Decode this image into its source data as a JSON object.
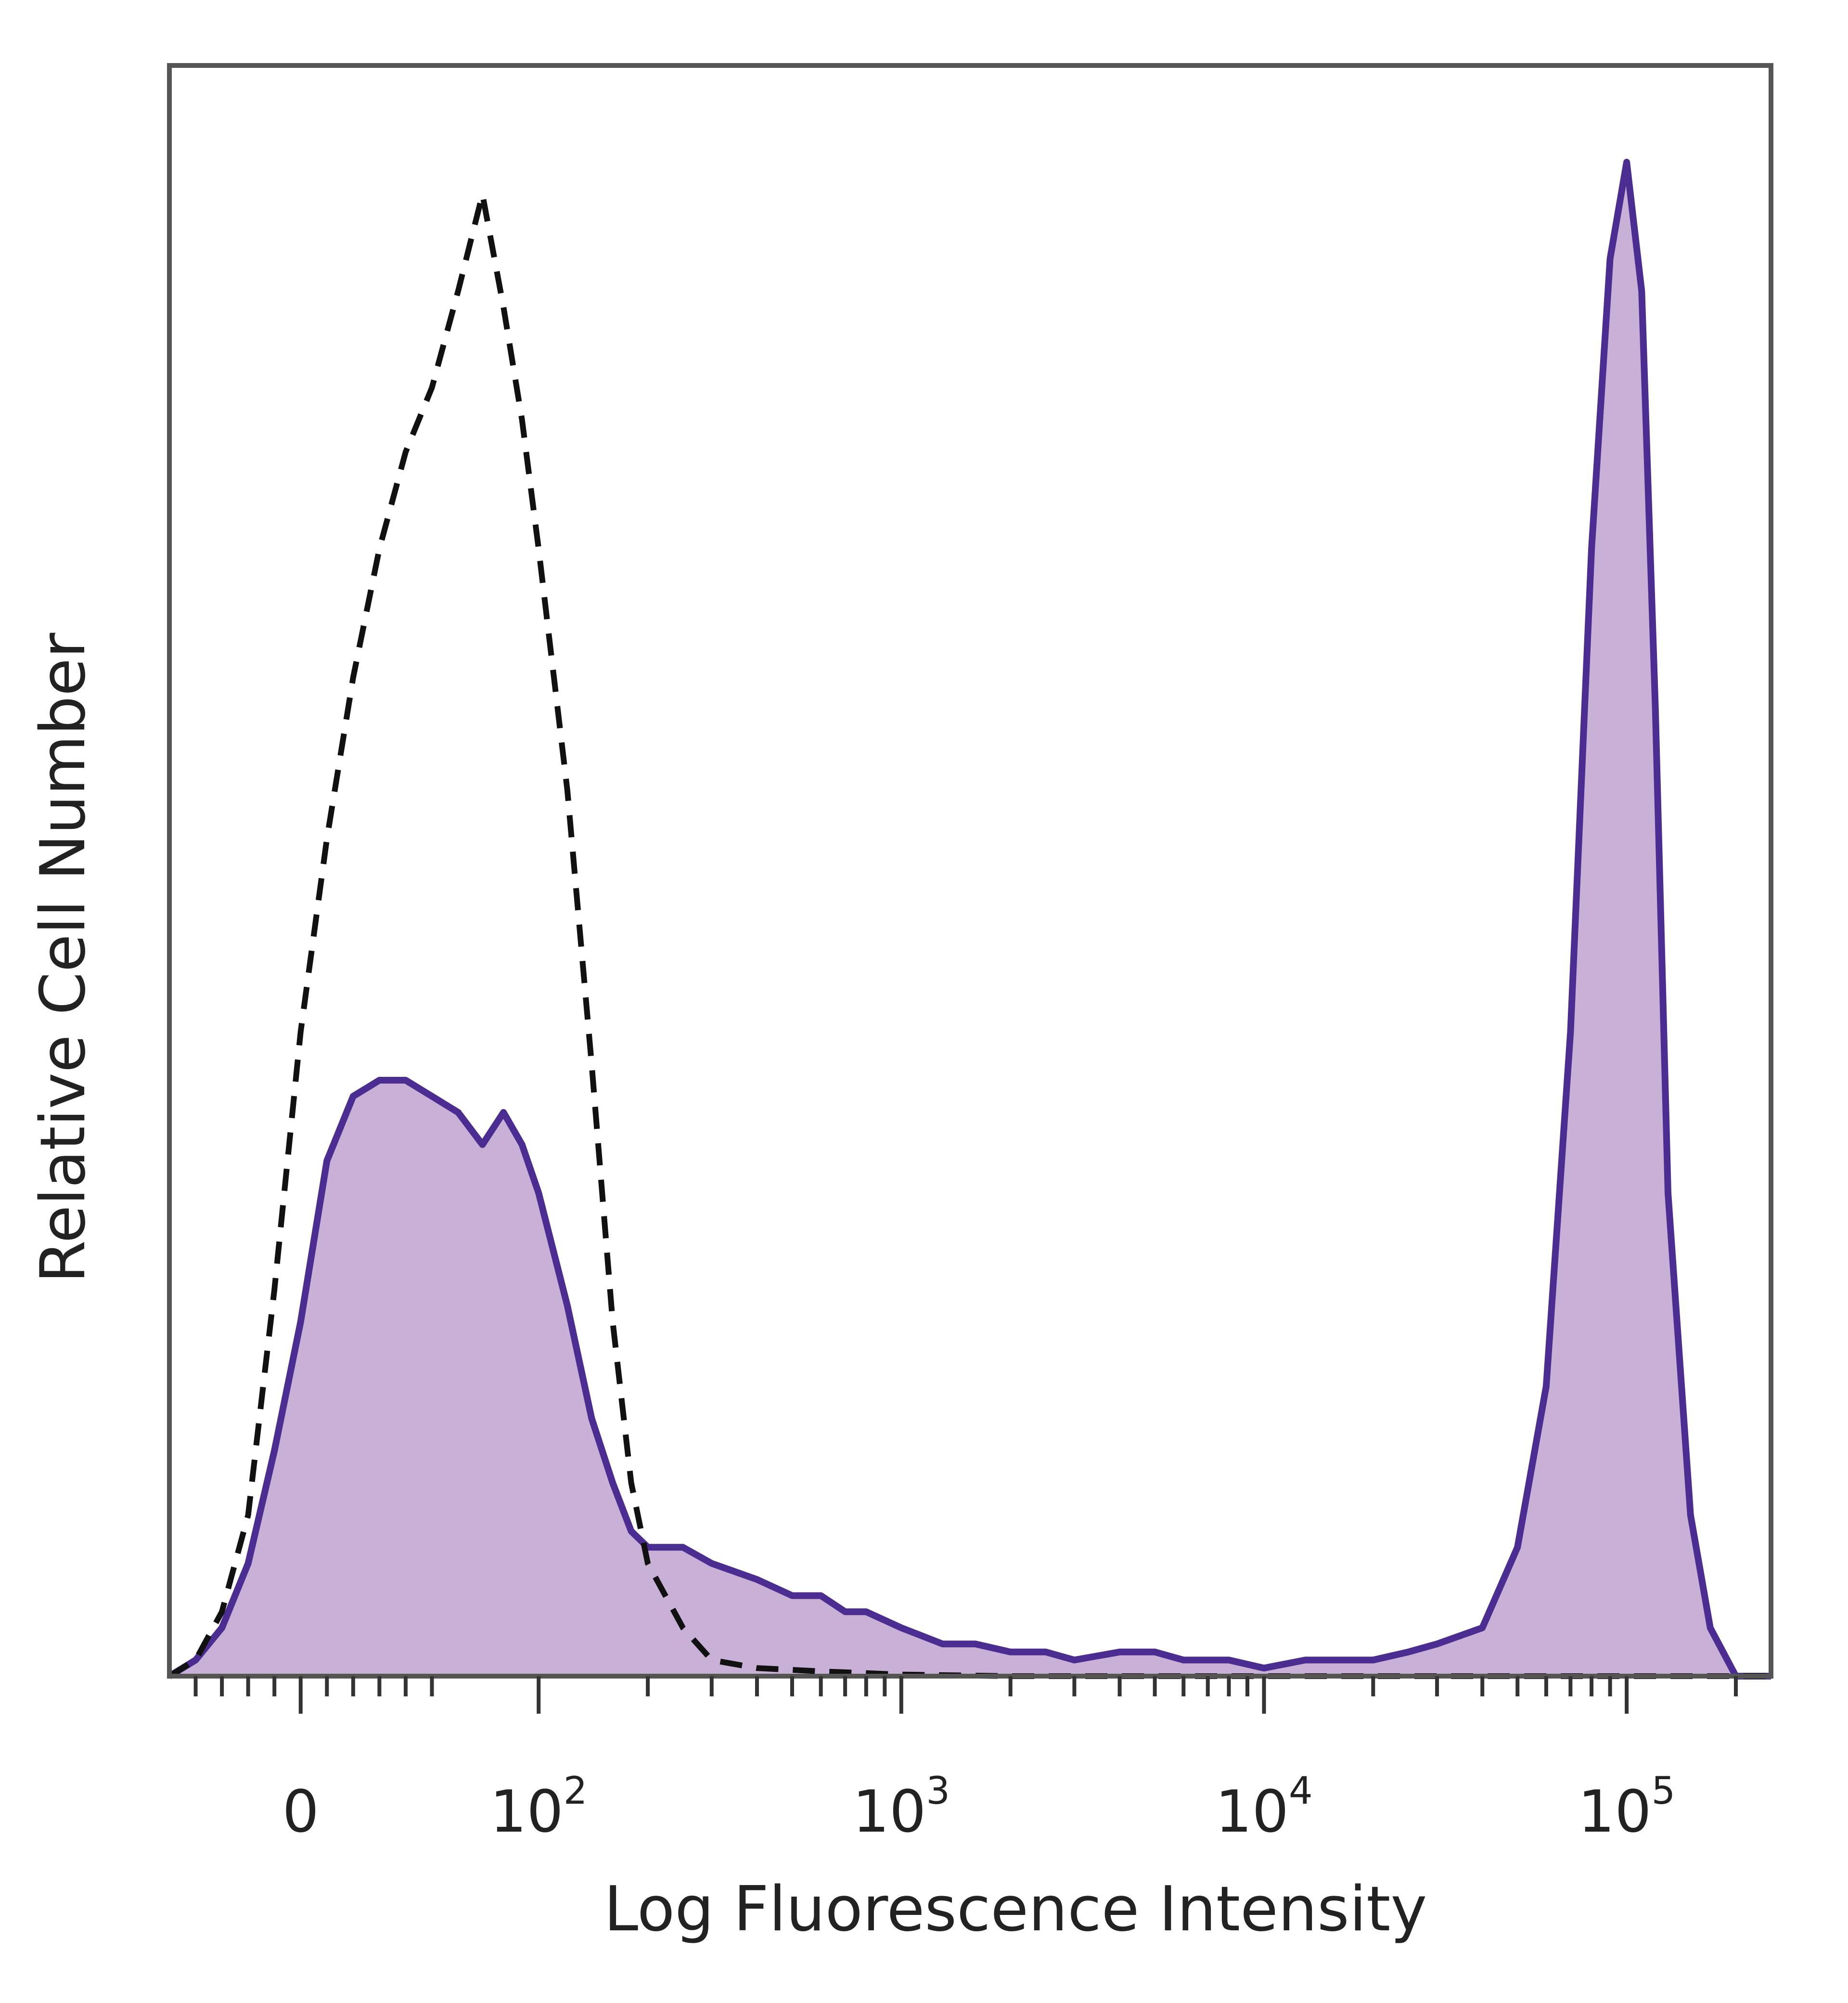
{
  "chart_data": {
    "type": "area",
    "title": "",
    "xlabel": "Log Fluorescence Intensity",
    "ylabel": "Relative Cell Number",
    "xscale": "biexponential",
    "yscale": "linear",
    "xlim": [
      -50,
      250000
    ],
    "ylim": [
      0,
      100
    ],
    "grid": false,
    "legend": "none",
    "x_ticks": [
      {
        "value": 0,
        "base": "0",
        "exp": ""
      },
      {
        "value": 100,
        "base": "10",
        "exp": "2"
      },
      {
        "value": 1000,
        "base": "10",
        "exp": "3"
      },
      {
        "value": 10000,
        "base": "10",
        "exp": "4"
      },
      {
        "value": 100000,
        "base": "10",
        "exp": "5"
      }
    ],
    "series": [
      {
        "style": "filled",
        "fill_color": "#c8b0d6",
        "line_color": "#4b2c91",
        "x": [
          -50,
          -40,
          -30,
          -20,
          -10,
          0,
          10,
          20,
          30,
          40,
          50,
          60,
          70,
          80,
          90,
          100,
          120,
          140,
          160,
          180,
          200,
          250,
          300,
          400,
          500,
          600,
          700,
          800,
          1000,
          1300,
          1600,
          2000,
          2500,
          3000,
          4000,
          5000,
          6000,
          8000,
          10000,
          13000,
          16000,
          20000,
          25000,
          30000,
          40000,
          50000,
          60000,
          70000,
          80000,
          90000,
          100000,
          110000,
          120000,
          130000,
          150000,
          170000,
          200000,
          250000
        ],
        "y": [
          0,
          1,
          3,
          7,
          14,
          22,
          32,
          36,
          37,
          37,
          36,
          35,
          33,
          35,
          33,
          30,
          23,
          16,
          12,
          9,
          8,
          8,
          7,
          6,
          5,
          5,
          4,
          4,
          3,
          2,
          2,
          1.5,
          1.5,
          1,
          1.5,
          1.5,
          1,
          1,
          0.5,
          1,
          1,
          1,
          1.5,
          2,
          3,
          8,
          18,
          40,
          70,
          88,
          94,
          86,
          60,
          30,
          10,
          3,
          0,
          0
        ]
      },
      {
        "style": "dashed",
        "line_color": "#111111",
        "x": [
          -50,
          -40,
          -30,
          -20,
          -10,
          0,
          10,
          20,
          30,
          40,
          50,
          60,
          70,
          80,
          90,
          100,
          120,
          140,
          160,
          180,
          200,
          250,
          300,
          400,
          600,
          1000,
          2000,
          5000,
          10000,
          100000,
          200000,
          250000
        ],
        "y": [
          0,
          1,
          4,
          10,
          24,
          40,
          52,
          62,
          70,
          76,
          80,
          86,
          92,
          85,
          78,
          70,
          55,
          38,
          22,
          12,
          7,
          3,
          1,
          0.5,
          0.3,
          0.1,
          0,
          0,
          0,
          0,
          0,
          0
        ]
      }
    ]
  }
}
